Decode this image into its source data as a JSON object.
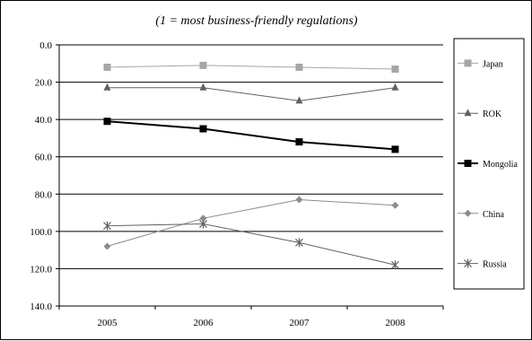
{
  "chart_data": {
    "type": "line",
    "title": "(1 = most business-friendly  regulations)",
    "xlabel": "",
    "ylabel": "",
    "categories": [
      "2005",
      "2006",
      "2007",
      "2008"
    ],
    "y_tick_labels": [
      "0.0",
      "20.0",
      "40.0",
      "60.0",
      "80.0",
      "100.0",
      "120.0",
      "140.0"
    ],
    "ylim": [
      0,
      140
    ],
    "y_inverted": true,
    "grid": "horizontal",
    "legend_position": "right",
    "series": [
      {
        "name": "Japan",
        "values": [
          12,
          11,
          12,
          13
        ],
        "color": "#a6a6a6",
        "marker": "square",
        "width": 1
      },
      {
        "name": "ROK",
        "values": [
          23,
          23,
          30,
          23
        ],
        "color": "#606060",
        "marker": "triangle",
        "width": 1
      },
      {
        "name": "Mongolia",
        "values": [
          41,
          45,
          52,
          56
        ],
        "color": "#000000",
        "marker": "square",
        "width": 2
      },
      {
        "name": "China",
        "values": [
          108,
          93,
          83,
          86
        ],
        "color": "#8c8c8c",
        "marker": "diamond",
        "width": 1
      },
      {
        "name": "Russia",
        "values": [
          97,
          96,
          106,
          118
        ],
        "color": "#606060",
        "marker": "star",
        "width": 1
      }
    ]
  }
}
